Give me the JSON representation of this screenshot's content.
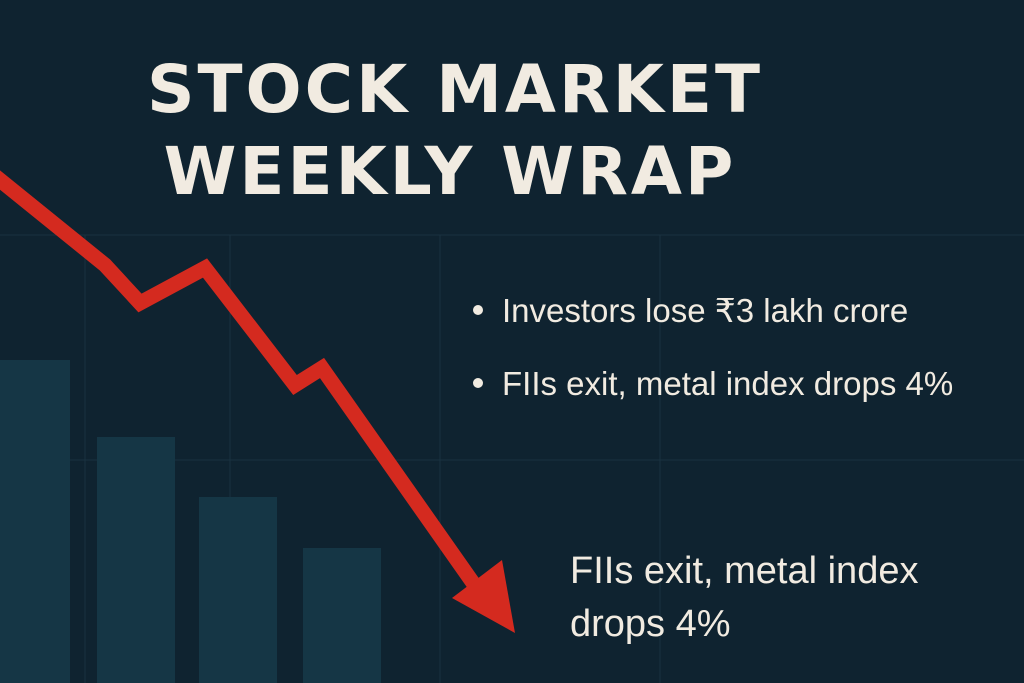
{
  "title": [
    "STOCK MARKET",
    "WEEKLY WRAP"
  ],
  "bullets": [
    "Investors lose ₹3 lakh crore",
    "FIIs exit, metal index drops 4%"
  ],
  "caption": [
    "FIIs exit, metal index",
    "drops 4%"
  ]
}
